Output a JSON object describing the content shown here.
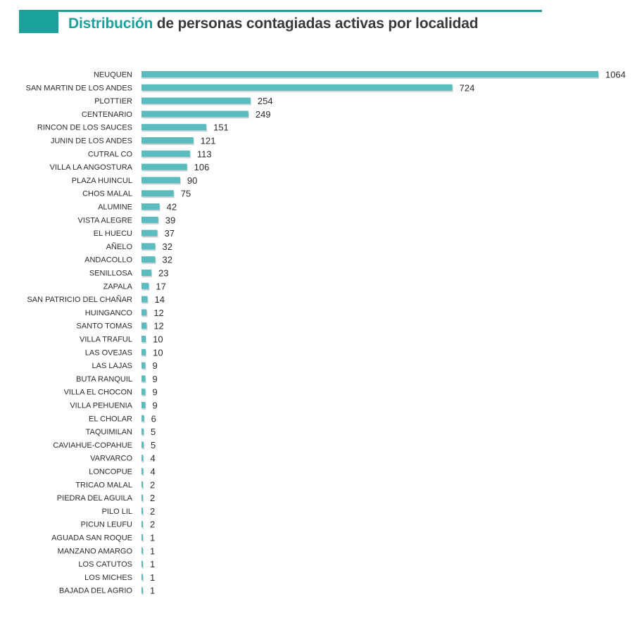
{
  "header": {
    "title_accent": "Distribución",
    "title_rest": " de personas contagiadas activas por localidad",
    "accent_color": "#1aa19b",
    "bar_color": "#5bbcc0"
  },
  "chart_data": {
    "type": "bar",
    "orientation": "horizontal",
    "title": "Distribución de personas contagiadas activas por localidad",
    "xlim": [
      0,
      1064
    ],
    "categories": [
      "NEUQUEN",
      "SAN MARTIN DE LOS ANDES",
      "PLOTTIER",
      "CENTENARIO",
      "RINCON DE LOS SAUCES",
      "JUNIN DE LOS ANDES",
      "CUTRAL CO",
      "VILLA LA ANGOSTURA",
      "PLAZA HUINCUL",
      "CHOS MALAL",
      "ALUMINE",
      "VISTA ALEGRE",
      "EL HUECU",
      "AÑELO",
      "ANDACOLLO",
      "SENILLOSA",
      "ZAPALA",
      "SAN PATRICIO DEL CHAÑAR",
      "HUINGANCO",
      "SANTO TOMAS",
      "VILLA TRAFUL",
      "LAS OVEJAS",
      "LAS LAJAS",
      "BUTA RANQUIL",
      "VILLA EL CHOCON",
      "VILLA PEHUENIA",
      "EL CHOLAR",
      "TAQUIMILAN",
      "CAVIAHUE-COPAHUE",
      "VARVARCO",
      "LONCOPUE",
      "TRICAO MALAL",
      "PIEDRA DEL AGUILA",
      "PILO LIL",
      "PICUN LEUFU",
      "AGUADA SAN ROQUE",
      "MANZANO AMARGO",
      "LOS CATUTOS",
      "LOS MICHES",
      "BAJADA DEL AGRIO"
    ],
    "values": [
      1064,
      724,
      254,
      249,
      151,
      121,
      113,
      106,
      90,
      75,
      42,
      39,
      37,
      32,
      32,
      23,
      17,
      14,
      12,
      12,
      10,
      10,
      9,
      9,
      9,
      9,
      6,
      5,
      5,
      4,
      4,
      2,
      2,
      2,
      2,
      1,
      1,
      1,
      1,
      1
    ]
  }
}
